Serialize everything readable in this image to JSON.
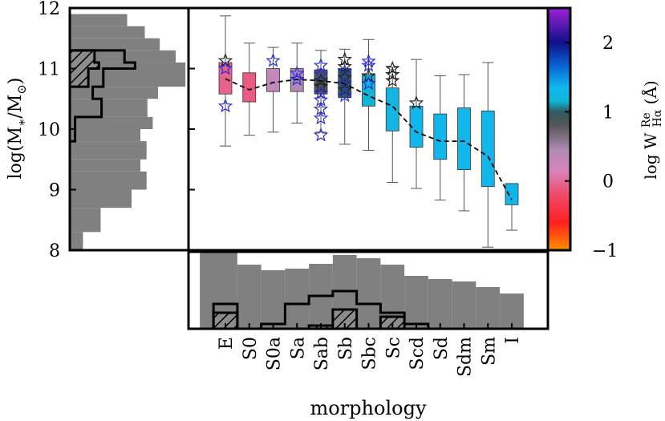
{
  "chart_data": {
    "type": "box",
    "title": "",
    "xlabel": "morphology",
    "ylabel": "log(M*/M⊙)",
    "ylim": [
      8,
      12
    ],
    "yticks": [
      8,
      9,
      10,
      11,
      12
    ],
    "categories": [
      "E",
      "S0",
      "S0a",
      "Sa",
      "Sab",
      "Sb",
      "Sbc",
      "Sc",
      "Scd",
      "Sd",
      "Sdm",
      "Sm",
      "I"
    ],
    "boxes": [
      {
        "cat": "E",
        "q1": 10.58,
        "q3": 11.1,
        "whislo": 9.72,
        "whishi": 11.87,
        "logW": -0.05
      },
      {
        "cat": "S0",
        "q1": 10.45,
        "q3": 10.93,
        "whislo": 9.9,
        "whishi": 11.42,
        "logW": -0.1
      },
      {
        "cat": "S0a",
        "q1": 10.62,
        "q3": 11.0,
        "whislo": 9.95,
        "whishi": 11.35,
        "logW": 0.3
      },
      {
        "cat": "Sa",
        "q1": 10.62,
        "q3": 11.0,
        "whislo": 10.1,
        "whishi": 11.42,
        "logW": 0.45
      },
      {
        "cat": "Sab",
        "q1": 10.58,
        "q3": 10.98,
        "whislo": 9.95,
        "whishi": 11.3,
        "logW": 0.85
      },
      {
        "cat": "Sb",
        "q1": 10.52,
        "q3": 11.0,
        "whislo": 9.75,
        "whishi": 11.32,
        "logW": 1.0
      },
      {
        "cat": "Sbc",
        "q1": 10.38,
        "q3": 10.9,
        "whislo": 9.65,
        "whishi": 11.48,
        "logW": 1.15
      },
      {
        "cat": "Sc",
        "q1": 9.97,
        "q3": 10.68,
        "whislo": 9.12,
        "whishi": 11.02,
        "logW": 1.25
      },
      {
        "cat": "Scd",
        "q1": 9.7,
        "q3": 10.38,
        "whislo": 9.02,
        "whishi": 11.15,
        "logW": 1.3
      },
      {
        "cat": "Sd",
        "q1": 9.5,
        "q3": 10.25,
        "whislo": 8.83,
        "whishi": 10.88,
        "logW": 1.3
      },
      {
        "cat": "Sdm",
        "q1": 9.33,
        "q3": 10.35,
        "whislo": 8.65,
        "whishi": 10.9,
        "logW": 1.3
      },
      {
        "cat": "Sm",
        "q1": 9.05,
        "q3": 10.3,
        "whislo": 8.05,
        "whishi": 11.1,
        "logW": 1.3
      },
      {
        "cat": "I",
        "q1": 8.75,
        "q3": 9.1,
        "whislo": 8.33,
        "whishi": 9.1,
        "logW": 1.3
      }
    ],
    "median_line": [
      {
        "cat": "E",
        "y": 10.83
      },
      {
        "cat": "S0",
        "y": 10.65
      },
      {
        "cat": "S0a",
        "y": 10.77
      },
      {
        "cat": "Sa",
        "y": 10.82
      },
      {
        "cat": "Sab",
        "y": 10.8
      },
      {
        "cat": "Sb",
        "y": 10.75
      },
      {
        "cat": "Sbc",
        "y": 10.55
      },
      {
        "cat": "Sc",
        "y": 10.38
      },
      {
        "cat": "Scd",
        "y": 9.95
      },
      {
        "cat": "Sd",
        "y": 9.8
      },
      {
        "cat": "Sdm",
        "y": 9.8
      },
      {
        "cat": "Sm",
        "y": 9.55
      },
      {
        "cat": "I",
        "y": 8.83
      }
    ],
    "stars": [
      {
        "cat": "E",
        "y": 11.13,
        "group": "black"
      },
      {
        "cat": "E",
        "y": 11.0,
        "group": "blue"
      },
      {
        "cat": "E",
        "y": 10.38,
        "group": "blue"
      },
      {
        "cat": "S0a",
        "y": 11.13,
        "group": "blue"
      },
      {
        "cat": "Sa",
        "y": 10.92,
        "group": "blue"
      },
      {
        "cat": "Sa",
        "y": 10.82,
        "group": "blue"
      },
      {
        "cat": "Sab",
        "y": 11.05,
        "group": "blue"
      },
      {
        "cat": "Sab",
        "y": 10.9,
        "group": "blue"
      },
      {
        "cat": "Sab",
        "y": 10.8,
        "group": "black"
      },
      {
        "cat": "Sab",
        "y": 10.7,
        "group": "black"
      },
      {
        "cat": "Sab",
        "y": 10.6,
        "group": "blue"
      },
      {
        "cat": "Sab",
        "y": 10.48,
        "group": "blue"
      },
      {
        "cat": "Sab",
        "y": 10.33,
        "group": "blue"
      },
      {
        "cat": "Sab",
        "y": 10.18,
        "group": "blue"
      },
      {
        "cat": "Sab",
        "y": 9.9,
        "group": "blue"
      },
      {
        "cat": "Sb",
        "y": 11.15,
        "group": "black"
      },
      {
        "cat": "Sb",
        "y": 11.03,
        "group": "black"
      },
      {
        "cat": "Sb",
        "y": 10.95,
        "group": "blue"
      },
      {
        "cat": "Sb",
        "y": 10.85,
        "group": "black"
      },
      {
        "cat": "Sb",
        "y": 10.75,
        "group": "blue"
      },
      {
        "cat": "Sb",
        "y": 10.65,
        "group": "black"
      },
      {
        "cat": "Sb",
        "y": 10.55,
        "group": "blue"
      },
      {
        "cat": "Sbc",
        "y": 11.12,
        "group": "blue"
      },
      {
        "cat": "Sbc",
        "y": 11.05,
        "group": "blue"
      },
      {
        "cat": "Sbc",
        "y": 10.88,
        "group": "black"
      },
      {
        "cat": "Sbc",
        "y": 10.75,
        "group": "blue"
      },
      {
        "cat": "Sc",
        "y": 11.0,
        "group": "black"
      },
      {
        "cat": "Sc",
        "y": 10.9,
        "group": "black"
      },
      {
        "cat": "Sc",
        "y": 10.8,
        "group": "black"
      },
      {
        "cat": "Scd",
        "y": 10.43,
        "group": "black"
      }
    ],
    "left_histogram": {
      "orientation": "horizontal",
      "bins": [
        {
          "y0": 8.0,
          "y1": 8.3,
          "total": 0.15,
          "outline": 0.0,
          "hatched": 0.0
        },
        {
          "y0": 8.3,
          "y1": 8.7,
          "total": 0.35,
          "outline": 0.0,
          "hatched": 0.0
        },
        {
          "y0": 8.7,
          "y1": 9.0,
          "total": 0.7,
          "outline": 0.0,
          "hatched": 0.0
        },
        {
          "y0": 9.0,
          "y1": 9.3,
          "total": 0.87,
          "outline": 0.0,
          "hatched": 0.0
        },
        {
          "y0": 9.3,
          "y1": 9.5,
          "total": 0.8,
          "outline": 0.0,
          "hatched": 0.0
        },
        {
          "y0": 9.5,
          "y1": 9.8,
          "total": 0.87,
          "outline": 0.0,
          "hatched": 0.0
        },
        {
          "y0": 9.8,
          "y1": 10.0,
          "total": 0.8,
          "outline": 0.06,
          "hatched": 0.0
        },
        {
          "y0": 10.0,
          "y1": 10.2,
          "total": 0.94,
          "outline": 0.06,
          "hatched": 0.0
        },
        {
          "y0": 10.2,
          "y1": 10.5,
          "total": 0.88,
          "outline": 0.36,
          "hatched": 0.0
        },
        {
          "y0": 10.5,
          "y1": 10.7,
          "total": 1.0,
          "outline": 0.26,
          "hatched": 0.0
        },
        {
          "y0": 10.7,
          "y1": 11.0,
          "total": 1.31,
          "outline": 0.38,
          "hatched": 0.21
        },
        {
          "y0": 11.0,
          "y1": 11.1,
          "total": 1.31,
          "outline": 0.74,
          "hatched": 0.33
        },
        {
          "y0": 11.1,
          "y1": 11.3,
          "total": 1.2,
          "outline": 0.62,
          "hatched": 0.28
        },
        {
          "y0": 11.3,
          "y1": 11.5,
          "total": 1.02,
          "outline": 0.0,
          "hatched": 0.0
        },
        {
          "y0": 11.5,
          "y1": 11.7,
          "total": 0.85,
          "outline": 0.0,
          "hatched": 0.0
        },
        {
          "y0": 11.7,
          "y1": 11.9,
          "total": 0.65,
          "outline": 0.0,
          "hatched": 0.0
        }
      ]
    },
    "bottom_histogram": {
      "orientation": "vertical",
      "bins": [
        {
          "cat": "E",
          "total": 0.95,
          "outline": 0.31,
          "hatched": 0.2
        },
        {
          "cat": "S0",
          "total": 0.8,
          "outline": 0.0,
          "hatched": 0.0
        },
        {
          "cat": "S0a",
          "total": 0.73,
          "outline": 0.06,
          "hatched": 0.0
        },
        {
          "cat": "Sa",
          "total": 0.75,
          "outline": 0.31,
          "hatched": 0.0
        },
        {
          "cat": "Sab",
          "total": 0.81,
          "outline": 0.41,
          "hatched": 0.04
        },
        {
          "cat": "Sb",
          "total": 0.92,
          "outline": 0.47,
          "hatched": 0.24
        },
        {
          "cat": "Sbc",
          "total": 0.88,
          "outline": 0.31,
          "hatched": 0.0
        },
        {
          "cat": "Sc",
          "total": 0.8,
          "outline": 0.2,
          "hatched": 0.15
        },
        {
          "cat": "Scd",
          "total": 0.66,
          "outline": 0.06,
          "hatched": 0.0
        },
        {
          "cat": "Sd",
          "total": 0.62,
          "outline": 0.0,
          "hatched": 0.0
        },
        {
          "cat": "Sdm",
          "total": 0.59,
          "outline": 0.0,
          "hatched": 0.0
        },
        {
          "cat": "Sm",
          "total": 0.52,
          "outline": 0.0,
          "hatched": 0.0
        },
        {
          "cat": "I",
          "total": 0.44,
          "outline": 0.0,
          "hatched": 0.0
        }
      ]
    },
    "colorbar": {
      "label": "log W",
      "label_sup": "Re",
      "label_sub": "Hα",
      "label_unit": "(Å)",
      "range": [
        -1,
        2.5
      ],
      "ticks": [
        -1,
        0,
        1,
        2
      ],
      "stops": [
        {
          "v": -1.0,
          "color": "#ff9000"
        },
        {
          "v": -0.6,
          "color": "#ff2020"
        },
        {
          "v": -0.2,
          "color": "#f04a6a"
        },
        {
          "v": 0.15,
          "color": "#d884bc"
        },
        {
          "v": 0.45,
          "color": "#b08ab5"
        },
        {
          "v": 0.8,
          "color": "#585858"
        },
        {
          "v": 1.0,
          "color": "#2f5a60"
        },
        {
          "v": 1.15,
          "color": "#12b4d6"
        },
        {
          "v": 1.35,
          "color": "#10b8f0"
        },
        {
          "v": 1.7,
          "color": "#0a5ad0"
        },
        {
          "v": 2.0,
          "color": "#10108a"
        },
        {
          "v": 2.5,
          "color": "#a020d8"
        }
      ]
    },
    "colors": {
      "hist_fill": "#808080",
      "whisker": "#555555",
      "star_black": "#222222",
      "star_blue": "#2a2ad8"
    }
  }
}
